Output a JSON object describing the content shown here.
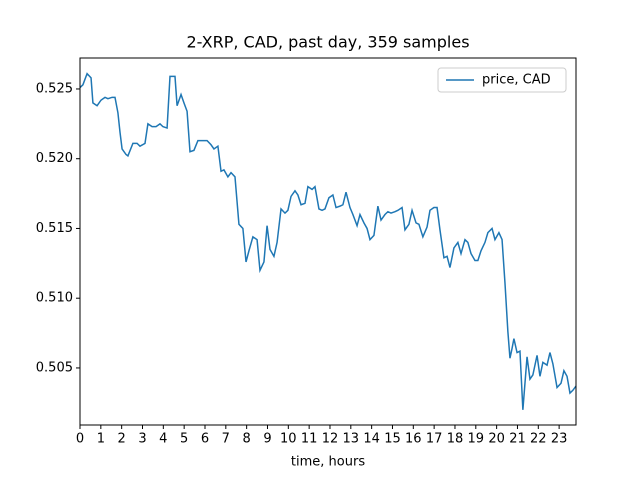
{
  "chart_data": {
    "type": "line",
    "title": "2-XRP, CAD, past day, 359 samples",
    "x_label": "time, hours",
    "x": [
      0,
      0.14,
      0.34,
      0.53,
      0.62,
      0.82,
      1.01,
      1.2,
      1.34,
      1.54,
      1.68,
      1.82,
      1.92,
      2.02,
      2.21,
      2.3,
      2.54,
      2.74,
      2.88,
      3.12,
      3.26,
      3.46,
      3.65,
      3.84,
      3.98,
      4.18,
      4.32,
      4.56,
      4.66,
      4.85,
      4.99,
      5.14,
      5.28,
      5.47,
      5.66,
      5.9,
      6.1,
      6.29,
      6.43,
      6.62,
      6.77,
      6.91,
      7.1,
      7.25,
      7.44,
      7.63,
      7.82,
      7.97,
      8.11,
      8.3,
      8.5,
      8.64,
      8.83,
      8.98,
      9.12,
      9.31,
      9.46,
      9.65,
      9.84,
      9.98,
      10.13,
      10.32,
      10.46,
      10.61,
      10.8,
      10.94,
      11.14,
      11.28,
      11.47,
      11.62,
      11.76,
      11.95,
      12.14,
      12.29,
      12.48,
      12.62,
      12.77,
      12.96,
      13.1,
      13.3,
      13.44,
      13.63,
      13.78,
      13.92,
      14.11,
      14.3,
      14.45,
      14.64,
      14.78,
      14.93,
      15.12,
      15.26,
      15.46,
      15.6,
      15.79,
      15.94,
      16.13,
      16.27,
      16.46,
      16.66,
      16.8,
      16.99,
      17.14,
      17.28,
      17.47,
      17.62,
      17.76,
      17.95,
      18.14,
      18.29,
      18.48,
      18.62,
      18.77,
      18.96,
      19.1,
      19.25,
      19.44,
      19.58,
      19.78,
      19.92,
      20.11,
      20.26,
      20.4,
      20.54,
      20.64,
      20.74,
      20.83,
      20.98,
      21.12,
      21.26,
      21.46,
      21.6,
      21.74,
      21.94,
      22.08,
      22.22,
      22.42,
      22.56,
      22.7,
      22.9,
      23.09,
      23.23,
      23.38,
      23.52,
      23.66,
      23.81
    ],
    "series": [
      {
        "name": "price, CAD",
        "color": "#1f77b4",
        "values": [
          0.5251,
          0.5253,
          0.5261,
          0.5258,
          0.524,
          0.5238,
          0.5242,
          0.5244,
          0.5243,
          0.5244,
          0.5244,
          0.5233,
          0.5219,
          0.5207,
          0.5203,
          0.5202,
          0.5211,
          0.5211,
          0.5209,
          0.5211,
          0.5225,
          0.5223,
          0.5223,
          0.5225,
          0.5223,
          0.5222,
          0.5259,
          0.5259,
          0.5238,
          0.5246,
          0.524,
          0.5234,
          0.5205,
          0.5206,
          0.5213,
          0.5213,
          0.5213,
          0.521,
          0.5207,
          0.5209,
          0.5191,
          0.5192,
          0.5187,
          0.519,
          0.5187,
          0.5153,
          0.515,
          0.5126,
          0.5134,
          0.5144,
          0.5142,
          0.512,
          0.5126,
          0.5152,
          0.5135,
          0.513,
          0.514,
          0.5164,
          0.5161,
          0.5163,
          0.5173,
          0.5177,
          0.5174,
          0.5167,
          0.5168,
          0.518,
          0.5178,
          0.518,
          0.5164,
          0.5163,
          0.5164,
          0.5172,
          0.5174,
          0.5165,
          0.5166,
          0.5167,
          0.5176,
          0.5165,
          0.516,
          0.5152,
          0.516,
          0.5154,
          0.515,
          0.5142,
          0.5145,
          0.5166,
          0.5156,
          0.516,
          0.5162,
          0.5161,
          0.5162,
          0.5163,
          0.5165,
          0.5149,
          0.5153,
          0.5163,
          0.5154,
          0.5153,
          0.5144,
          0.5151,
          0.5163,
          0.5165,
          0.5165,
          0.5149,
          0.5129,
          0.513,
          0.5122,
          0.5136,
          0.514,
          0.5132,
          0.5142,
          0.514,
          0.5132,
          0.5127,
          0.5127,
          0.5134,
          0.514,
          0.5147,
          0.515,
          0.5142,
          0.5147,
          0.5142,
          0.5111,
          0.5076,
          0.5057,
          0.5064,
          0.5071,
          0.5061,
          0.5062,
          0.502,
          0.5058,
          0.5042,
          0.5045,
          0.5059,
          0.5044,
          0.5054,
          0.5052,
          0.5061,
          0.5053,
          0.5036,
          0.5039,
          0.5048,
          0.5044,
          0.5032,
          0.5034,
          0.5037
        ]
      }
    ],
    "xlim": [
      0,
      23.81
    ],
    "ylim": [
      0.50091,
      0.52722
    ],
    "xticks": [
      0,
      1,
      2,
      3,
      4,
      5,
      6,
      7,
      8,
      9,
      10,
      11,
      12,
      13,
      14,
      15,
      16,
      17,
      18,
      19,
      20,
      21,
      22,
      23
    ],
    "yticks": [
      0.505,
      {
        "value": 0.51,
        "label": "0.510"
      },
      0.515,
      {
        "value": 0.52,
        "label": "0.520"
      },
      0.525
    ],
    "legend": "upper right"
  }
}
